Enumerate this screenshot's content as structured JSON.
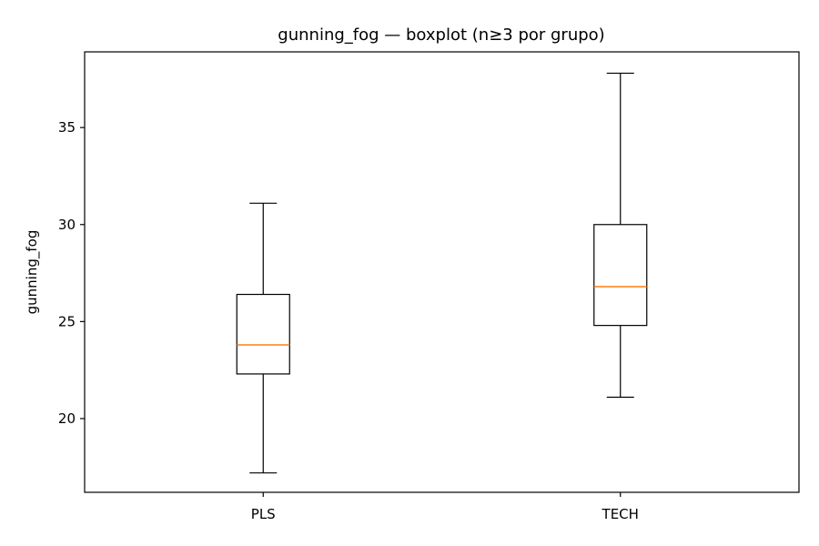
{
  "chart_data": {
    "type": "boxplot",
    "title": "gunning_fog — boxplot (n≥3 por grupo)",
    "xlabel": "",
    "ylabel": "gunning_fog",
    "ylim": [
      16.2,
      38.9
    ],
    "yticks": [
      20,
      25,
      30,
      35
    ],
    "grid": false,
    "categories": [
      "PLS",
      "TECH"
    ],
    "boxes": [
      {
        "category": "PLS",
        "whisker_low": 17.2,
        "q1": 22.3,
        "median": 23.8,
        "q3": 26.4,
        "whisker_high": 31.1
      },
      {
        "category": "TECH",
        "whisker_low": 21.1,
        "q1": 24.8,
        "median": 26.8,
        "q3": 30.0,
        "whisker_high": 37.8
      }
    ],
    "colors": {
      "box": "#000000",
      "median": "#ff7f0e"
    }
  }
}
